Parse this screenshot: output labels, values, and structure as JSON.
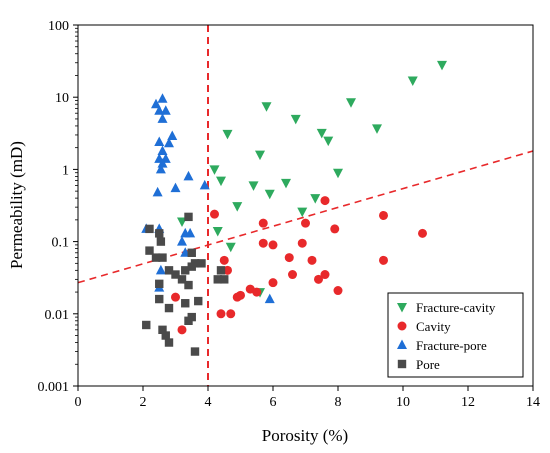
{
  "chart_data": {
    "type": "scatter",
    "xlabel": "Porosity (%)",
    "ylabel": "Permeability (mD)",
    "xlim": [
      0,
      14
    ],
    "ylim": [
      0.001,
      100
    ],
    "yscale": "log",
    "grid": false,
    "legend_position": "bottom-right",
    "x_ticks": [
      "0",
      "2",
      "4",
      "6",
      "8",
      "10",
      "12",
      "14"
    ],
    "y_ticks": [
      "0.001",
      "0.01",
      "0.1",
      "1",
      "10",
      "100"
    ],
    "reference_lines": [
      {
        "kind": "vertical",
        "x": 4,
        "style": "dashed",
        "color": "#e8292b"
      },
      {
        "kind": "trend",
        "points": [
          [
            0,
            0.027
          ],
          [
            14,
            1.8
          ]
        ],
        "style": "dashed",
        "color": "#e8292b"
      }
    ],
    "series": [
      {
        "name": "Fracture-cavity",
        "marker": "triangle-down",
        "color": "#2eaa5e",
        "points": [
          [
            11.2,
            28
          ],
          [
            10.3,
            17
          ],
          [
            8.4,
            8.5
          ],
          [
            5.8,
            7.5
          ],
          [
            6.7,
            5
          ],
          [
            7.5,
            3.2
          ],
          [
            9.2,
            3.7
          ],
          [
            4.6,
            3.1
          ],
          [
            7.7,
            2.5
          ],
          [
            5.6,
            1.6
          ],
          [
            4.2,
            1.0
          ],
          [
            8.0,
            0.9
          ],
          [
            4.4,
            0.7
          ],
          [
            5.4,
            0.6
          ],
          [
            6.4,
            0.65
          ],
          [
            5.9,
            0.46
          ],
          [
            7.3,
            0.4
          ],
          [
            4.9,
            0.31
          ],
          [
            6.9,
            0.26
          ],
          [
            3.2,
            0.19
          ],
          [
            4.3,
            0.14
          ],
          [
            4.7,
            0.085
          ],
          [
            5.6,
            0.02
          ]
        ]
      },
      {
        "name": "Cavity",
        "marker": "circle",
        "color": "#e8292b",
        "points": [
          [
            4.2,
            0.24
          ],
          [
            9.4,
            0.23
          ],
          [
            5.7,
            0.18
          ],
          [
            7.6,
            0.37
          ],
          [
            7.0,
            0.18
          ],
          [
            7.9,
            0.15
          ],
          [
            10.6,
            0.13
          ],
          [
            5.7,
            0.095
          ],
          [
            6.0,
            0.09
          ],
          [
            6.9,
            0.095
          ],
          [
            4.5,
            0.055
          ],
          [
            4.6,
            0.04
          ],
          [
            6.5,
            0.06
          ],
          [
            6.6,
            0.035
          ],
          [
            7.2,
            0.055
          ],
          [
            7.6,
            0.035
          ],
          [
            7.4,
            0.03
          ],
          [
            9.4,
            0.055
          ],
          [
            6.0,
            0.027
          ],
          [
            8.0,
            0.021
          ],
          [
            5.0,
            0.018
          ],
          [
            5.3,
            0.022
          ],
          [
            5.5,
            0.02
          ],
          [
            4.9,
            0.017
          ],
          [
            3.0,
            0.017
          ],
          [
            3.2,
            0.006
          ],
          [
            4.4,
            0.01
          ],
          [
            4.7,
            0.01
          ]
        ]
      },
      {
        "name": "Fracture-pore",
        "marker": "triangle-up",
        "color": "#1f6fd6",
        "points": [
          [
            2.4,
            8
          ],
          [
            2.5,
            6.5
          ],
          [
            2.6,
            9.5
          ],
          [
            2.7,
            6.5
          ],
          [
            2.6,
            5
          ],
          [
            2.9,
            2.9
          ],
          [
            2.8,
            2.3
          ],
          [
            2.5,
            2.4
          ],
          [
            2.6,
            1.8
          ],
          [
            2.7,
            1.4
          ],
          [
            2.5,
            1.4
          ],
          [
            2.6,
            1.2
          ],
          [
            2.55,
            1.0
          ],
          [
            3.4,
            0.8
          ],
          [
            2.45,
            0.48
          ],
          [
            3.0,
            0.55
          ],
          [
            3.9,
            0.6
          ],
          [
            2.1,
            0.15
          ],
          [
            2.5,
            0.15
          ],
          [
            3.2,
            0.1
          ],
          [
            3.3,
            0.13
          ],
          [
            3.45,
            0.13
          ],
          [
            3.3,
            0.07
          ],
          [
            2.55,
            0.04
          ],
          [
            2.5,
            0.023
          ],
          [
            5.9,
            0.016
          ]
        ]
      },
      {
        "name": "Pore",
        "marker": "square",
        "color": "#4a4a4a",
        "points": [
          [
            3.4,
            0.22
          ],
          [
            2.2,
            0.15
          ],
          [
            2.5,
            0.13
          ],
          [
            2.2,
            0.075
          ],
          [
            2.4,
            0.06
          ],
          [
            2.6,
            0.06
          ],
          [
            2.8,
            0.04
          ],
          [
            2.55,
            0.1
          ],
          [
            3.5,
            0.07
          ],
          [
            3.3,
            0.04
          ],
          [
            3.0,
            0.035
          ],
          [
            3.5,
            0.045
          ],
          [
            3.6,
            0.05
          ],
          [
            3.2,
            0.03
          ],
          [
            3.4,
            0.025
          ],
          [
            3.8,
            0.05
          ],
          [
            2.5,
            0.026
          ],
          [
            2.5,
            0.016
          ],
          [
            2.8,
            0.012
          ],
          [
            3.3,
            0.014
          ],
          [
            3.7,
            0.015
          ],
          [
            4.3,
            0.03
          ],
          [
            4.4,
            0.04
          ],
          [
            4.5,
            0.03
          ],
          [
            3.5,
            0.009
          ],
          [
            3.4,
            0.008
          ],
          [
            2.1,
            0.007
          ],
          [
            2.6,
            0.006
          ],
          [
            2.7,
            0.005
          ],
          [
            2.8,
            0.004
          ],
          [
            3.6,
            0.003
          ]
        ]
      }
    ]
  }
}
